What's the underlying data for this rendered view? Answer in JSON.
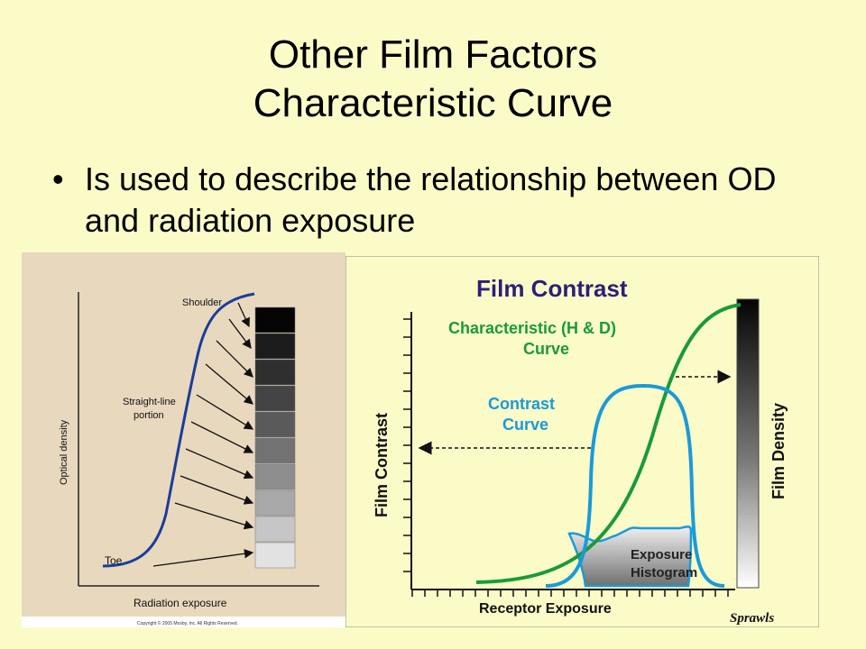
{
  "slide": {
    "title_line1": "Other Film Factors",
    "title_line2": "Characteristic Curve",
    "bullet_char": "•",
    "bullet_text": "Is used to describe the relationship between OD and radiation exposure"
  },
  "left_figure": {
    "y_axis_label": "Optical density",
    "x_axis_label": "Radiation exposure",
    "label_shoulder": "Shoulder",
    "label_straight_line_1": "Straight-line",
    "label_straight_line_2": "portion",
    "label_toe": "Toe",
    "copyright": "Copyright © 2005 Mosby, Inc. All Rights Reserved.",
    "colors": {
      "background": "#e8d8be",
      "curve": "#1a3d9a"
    },
    "step_tablet_shades": [
      "#050505",
      "#1c1c1c",
      "#2f2f2f",
      "#444444",
      "#5a5a5a",
      "#727272",
      "#8d8d8d",
      "#a8a8a8",
      "#c6c6c6",
      "#e2e2e2"
    ]
  },
  "right_figure": {
    "title": "Film Contrast",
    "char_curve_label_1": "Characteristic (H & D)",
    "char_curve_label_2": "Curve",
    "contrast_curve_label_1": "Contrast",
    "contrast_curve_label_2": "Curve",
    "histogram_label_1": "Exposure",
    "histogram_label_2": "Histogram",
    "y_axis_left": "Film Contrast",
    "y_axis_right": "Film Density",
    "x_axis_label": "Receptor Exposure",
    "signature": "Sprawls",
    "colors": {
      "background": "#fbfbc8",
      "title": "#2b1f7a",
      "characteristic": "#1a9a3a",
      "contrast": "#1a9ad8"
    }
  }
}
